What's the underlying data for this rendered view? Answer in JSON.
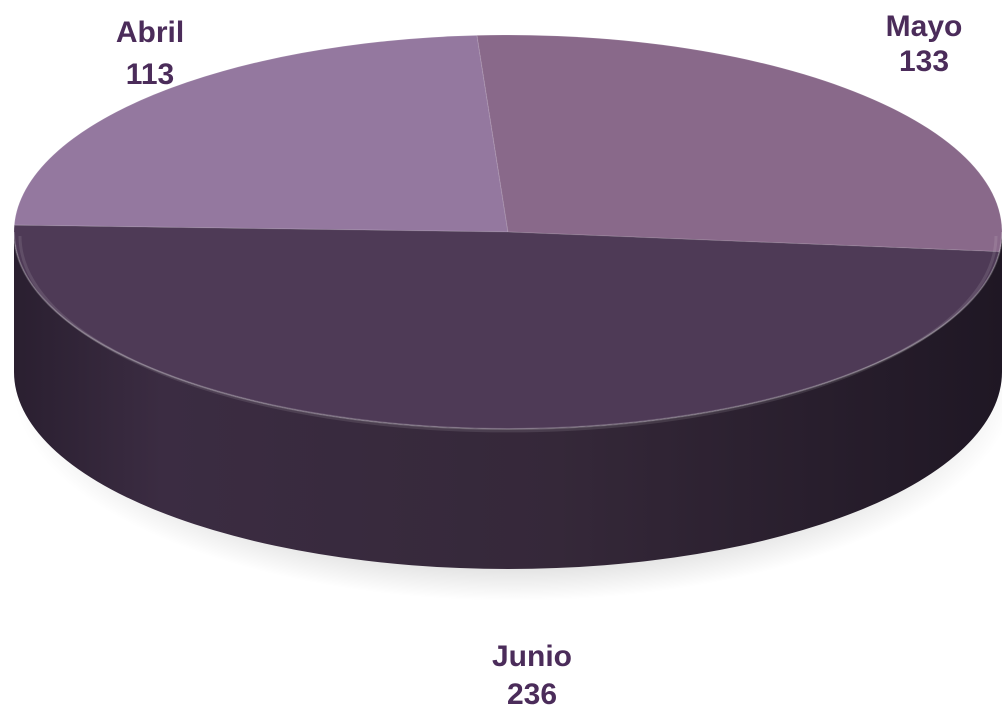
{
  "chart_data": {
    "type": "pie",
    "title": "",
    "categories": [
      "Abril",
      "Mayo",
      "Junio"
    ],
    "values": [
      113,
      133,
      236
    ],
    "series": [
      {
        "values": [
          113,
          133,
          236
        ]
      }
    ],
    "colors": {
      "Abril": "#94789f",
      "Mayo": "#89698a",
      "Junio": "#4e3a56",
      "side": "#2e2233",
      "label_text": "#4b2c5a"
    },
    "style": "3d-tilted",
    "legend": "none",
    "data_labels": "category-and-value"
  }
}
